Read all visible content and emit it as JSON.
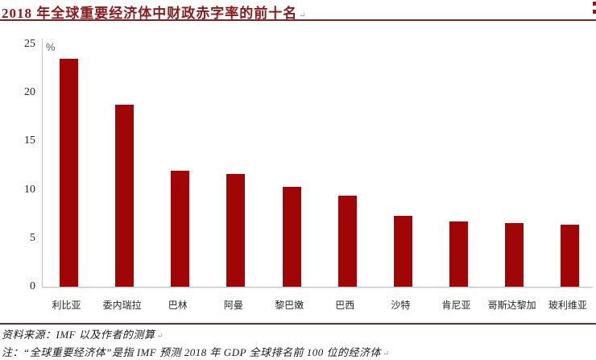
{
  "page": {
    "title": "2018 年全球重要经济体中财政赤字率的前十名",
    "paragraph_mark": "↵"
  },
  "chart_data": {
    "type": "bar",
    "title": "2018 年全球重要经济体中财政赤字率的前十名",
    "unit_label": "%",
    "categories": [
      "利比亚",
      "委内瑞拉",
      "巴林",
      "阿曼",
      "黎巴嫩",
      "巴西",
      "沙特",
      "肯尼亚",
      "哥斯达黎加",
      "玻利维亚"
    ],
    "values": [
      23.5,
      18.8,
      12.0,
      11.6,
      10.3,
      9.4,
      7.3,
      6.7,
      6.6,
      6.4
    ],
    "ylim": [
      0,
      25
    ],
    "yticks": [
      0,
      5,
      10,
      15,
      20,
      25
    ],
    "xlabel": "",
    "ylabel": "%",
    "grid": false,
    "legend": "none",
    "bar_color": "#A00606"
  },
  "footer": {
    "source_line": "资料来源：IMF 以及作者的测算",
    "note_line": "注：“全球重要经济体”是指 IMF 预测 2018 年 GDP 全球排名前 100 位的经济体",
    "paragraph_mark": "↵"
  },
  "colors": {
    "title_text": "#8B1A1A",
    "rule": "#7F2422",
    "bar": "#A00606",
    "axis_line": "#C6C6C6",
    "label_text": "#262626"
  }
}
